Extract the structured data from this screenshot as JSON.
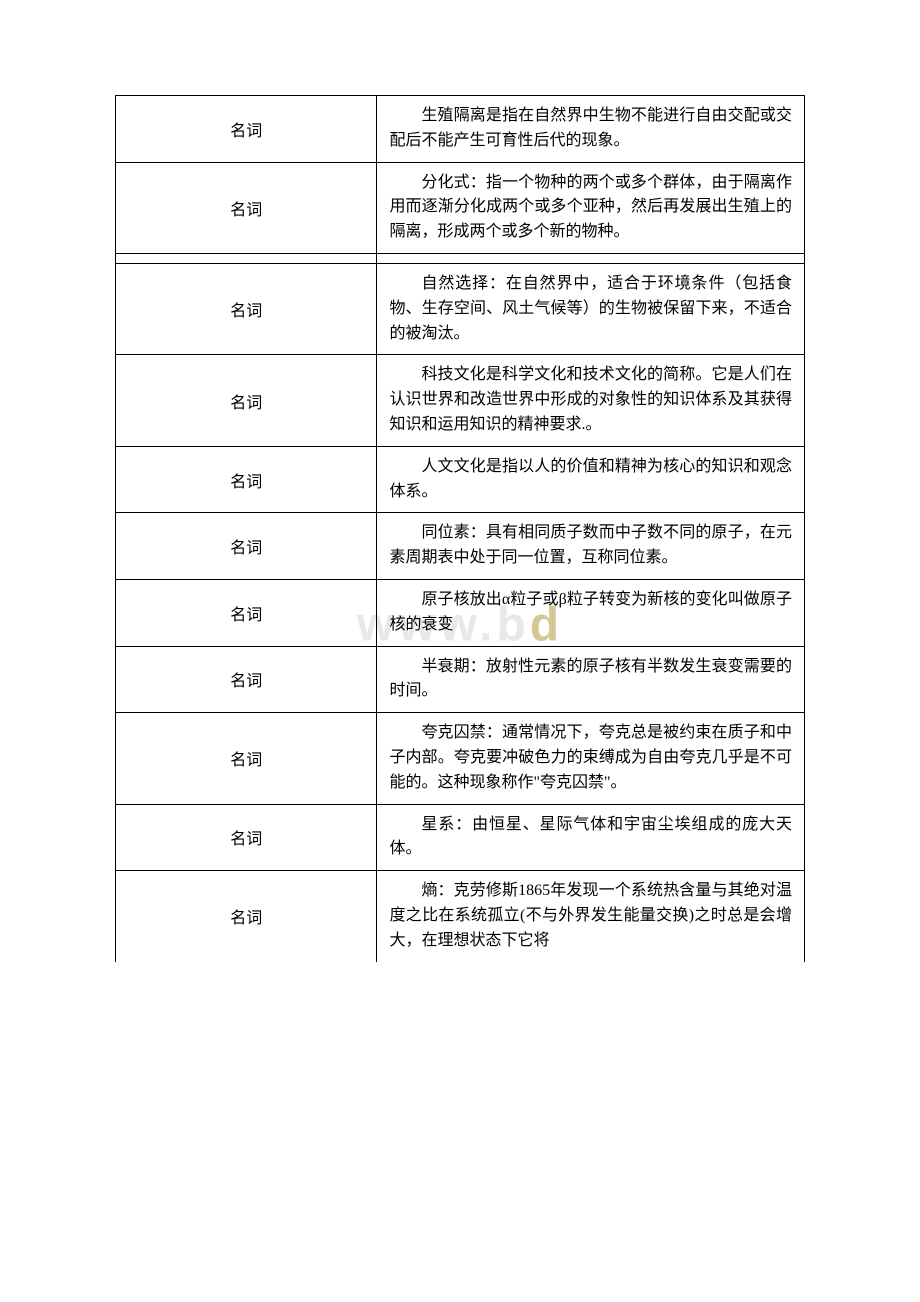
{
  "watermark": {
    "prefix": "www.b",
    "accent": "d",
    "suffix": ""
  },
  "table": {
    "label": "名词",
    "rows": [
      {
        "type": "名词",
        "definition": "生殖隔离是指在自然界中生物不能进行自由交配或交配后不能产生可育性后代的现象。"
      },
      {
        "type": "名词",
        "definition": "分化式：指一个物种的两个或多个群体，由于隔离作用而逐渐分化成两个或多个亚种，然后再发展出生殖上的隔离，形成两个或多个新的物种。"
      },
      {
        "type": "empty"
      },
      {
        "type": "名词",
        "definition": "自然选择：在自然界中，适合于环境条件（包括食物、生存空间、风土气候等）的生物被保留下来，不适合的被淘汰。"
      },
      {
        "type": "名词",
        "definition": "科技文化是科学文化和技术文化的简称。它是人们在认识世界和改造世界中形成的对象性的知识体系及其获得知识和运用知识的精神要求.。"
      },
      {
        "type": "名词",
        "definition": "人文文化是指以人的价值和精神为核心的知识和观念体系。"
      },
      {
        "type": "名词",
        "definition": "同位素：具有相同质子数而中子数不同的原子，在元素周期表中处于同一位置，互称同位素。"
      },
      {
        "type": "名词",
        "definition": "原子核放出α粒子或β粒子转变为新核的变化叫做原子核的衰变"
      },
      {
        "type": "名词",
        "definition": "半衰期：放射性元素的原子核有半数发生衰变需要的时间。"
      },
      {
        "type": "名词",
        "definition": "夸克囚禁：通常情况下，夸克总是被约束在质子和中子内部。夸克要冲破色力的束缚成为自由夸克几乎是不可能的。这种现象称作\"夸克囚禁\"。"
      },
      {
        "type": "名词",
        "definition": "星系：由恒星、星际气体和宇宙尘埃组成的庞大天体。"
      },
      {
        "type": "名词",
        "definition": "熵：克劳修斯1865年发现一个系统热含量与其绝对温度之比在系统孤立(不与外界发生能量交换)之时总是会增大，在理想状态下它将"
      }
    ]
  }
}
